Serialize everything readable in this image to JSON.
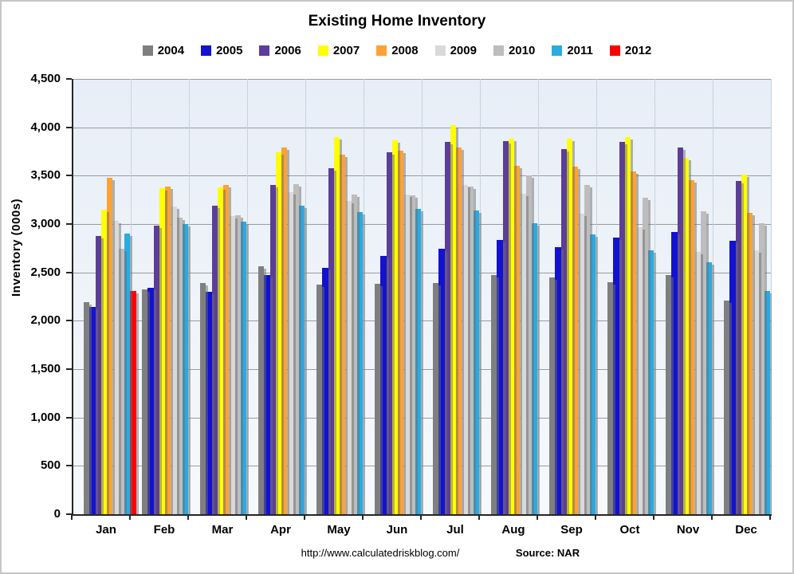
{
  "title": "Existing Home Inventory",
  "y_axis": {
    "label": "Inventory (000s)",
    "tick_labels": [
      "4,500",
      "4,000",
      "3,500",
      "3,000",
      "2,500",
      "2,000",
      "1,500",
      "1,000",
      "500",
      "0"
    ]
  },
  "footer": {
    "url": "http://www.calculatedriskblog.com/",
    "source": "Source: NAR"
  },
  "chart_data": {
    "type": "bar",
    "title": "Existing Home Inventory",
    "ylabel": "Inventory (000s)",
    "ylim": [
      0,
      4500
    ],
    "ytick_step": 500,
    "grid": true,
    "legend_position": "top",
    "categories": [
      "Jan",
      "Feb",
      "Mar",
      "Apr",
      "May",
      "Jun",
      "Jul",
      "Aug",
      "Sep",
      "Oct",
      "Nov",
      "Dec"
    ],
    "series": [
      {
        "name": "2004",
        "color": "#7f7f7f",
        "values": [
          2195,
          2325,
          2390,
          2560,
          2375,
          2385,
          2390,
          2470,
          2445,
          2395,
          2470,
          2210
        ]
      },
      {
        "name": "2005",
        "color": "#1212d0",
        "values": [
          2140,
          2340,
          2300,
          2470,
          2550,
          2670,
          2745,
          2835,
          2760,
          2860,
          2920,
          2830
        ]
      },
      {
        "name": "2006",
        "color": "#5c3d99",
        "values": [
          2880,
          2980,
          3190,
          3405,
          3580,
          3740,
          3850,
          3855,
          3775,
          3850,
          3795,
          3445
        ]
      },
      {
        "name": "2007",
        "color": "#ffff00",
        "values": [
          3145,
          3375,
          3380,
          3745,
          3900,
          3865,
          4025,
          3885,
          3880,
          3900,
          3685,
          3510
        ]
      },
      {
        "name": "2008",
        "color": "#fda233",
        "values": [
          3480,
          3390,
          3405,
          3795,
          3720,
          3760,
          3795,
          3600,
          3595,
          3545,
          3450,
          3115
        ]
      },
      {
        "name": "2009",
        "color": "#d9d9d9",
        "values": [
          3035,
          3185,
          3085,
          3330,
          3240,
          3305,
          3400,
          3315,
          3105,
          2970,
          2710,
          2730
        ]
      },
      {
        "name": "2010",
        "color": "#bdbdbd",
        "values": [
          2745,
          3070,
          3090,
          3410,
          3305,
          3300,
          3390,
          3505,
          3400,
          3270,
          3135,
          3010
        ]
      },
      {
        "name": "2011",
        "color": "#29abe2",
        "values": [
          2905,
          3000,
          3025,
          3190,
          3125,
          3155,
          3140,
          3005,
          2895,
          2725,
          2605,
          2310
        ]
      },
      {
        "name": "2012",
        "color": "#ff0000",
        "values": [
          2305,
          null,
          null,
          null,
          null,
          null,
          null,
          null,
          null,
          null,
          null,
          null
        ]
      }
    ]
  }
}
